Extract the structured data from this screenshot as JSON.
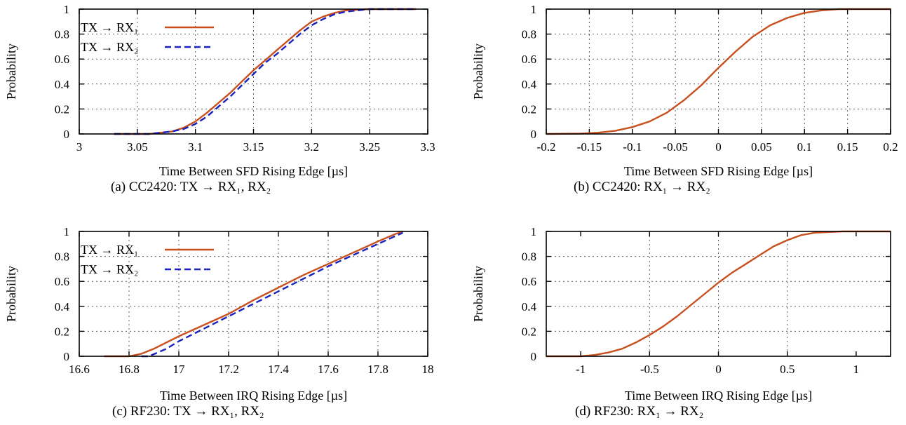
{
  "panels": [
    {
      "id": "a",
      "caption": "(a) CC2420: TX → RX₁, RX₂",
      "chart_data": {
        "type": "line",
        "xlabel": "Time Between SFD Rising Edge [µs]",
        "ylabel": "Probability",
        "xlim": [
          3.0,
          3.3
        ],
        "ylim": [
          0,
          1
        ],
        "xticks": [
          3,
          3.05,
          3.1,
          3.15,
          3.2,
          3.25,
          3.3
        ],
        "xtick_labels": [
          "3",
          "3.05",
          "3.1",
          "3.15",
          "3.2",
          "3.25",
          "3.3"
        ],
        "yticks": [
          0,
          0.2,
          0.4,
          0.6,
          0.8,
          1
        ],
        "ytick_labels": [
          "0",
          "0.2",
          "0.4",
          "0.6",
          "0.8",
          "1"
        ],
        "grid": true,
        "legend": "top-left",
        "series": [
          {
            "name": "TX → RX₁",
            "color": "#c8501e",
            "style": "solid",
            "x": [
              3.03,
              3.06,
              3.07,
              3.08,
              3.09,
              3.1,
              3.11,
              3.12,
              3.13,
              3.14,
              3.15,
              3.16,
              3.17,
              3.18,
              3.19,
              3.2,
              3.21,
              3.22,
              3.23,
              3.24,
              3.25,
              3.29
            ],
            "y": [
              0,
              0.0,
              0.01,
              0.02,
              0.05,
              0.1,
              0.17,
              0.25,
              0.33,
              0.42,
              0.51,
              0.59,
              0.67,
              0.75,
              0.83,
              0.9,
              0.94,
              0.97,
              0.99,
              0.995,
              1.0,
              1.0
            ]
          },
          {
            "name": "TX → RX₂",
            "color": "#1a22c0",
            "style": "dashed",
            "x": [
              3.03,
              3.06,
              3.07,
              3.08,
              3.09,
              3.1,
              3.11,
              3.12,
              3.13,
              3.14,
              3.15,
              3.16,
              3.17,
              3.18,
              3.19,
              3.2,
              3.21,
              3.22,
              3.23,
              3.24,
              3.25,
              3.29
            ],
            "y": [
              0,
              0.0,
              0.01,
              0.02,
              0.04,
              0.08,
              0.14,
              0.22,
              0.3,
              0.39,
              0.48,
              0.57,
              0.64,
              0.72,
              0.8,
              0.87,
              0.92,
              0.96,
              0.98,
              0.99,
              1.0,
              1.0
            ]
          }
        ]
      }
    },
    {
      "id": "b",
      "caption": "(b) CC2420: RX₁ → RX₂",
      "chart_data": {
        "type": "line",
        "xlabel": "Time Between SFD Rising Edge [µs]",
        "ylabel": "Probability",
        "xlim": [
          -0.2,
          0.2
        ],
        "ylim": [
          0,
          1
        ],
        "xticks": [
          -0.2,
          -0.15,
          -0.1,
          -0.05,
          0,
          0.05,
          0.1,
          0.15,
          0.2
        ],
        "xtick_labels": [
          "-0.2",
          "-0.15",
          "-0.1",
          "-0.05",
          "0",
          "0.05",
          "0.1",
          "0.15",
          "0.2"
        ],
        "yticks": [
          0,
          0.2,
          0.4,
          0.6,
          0.8,
          1
        ],
        "ytick_labels": [
          "0",
          "0.2",
          "0.4",
          "0.6",
          "0.8",
          "1"
        ],
        "grid": true,
        "legend": "none",
        "series": [
          {
            "color": "#c8501e",
            "style": "solid",
            "x": [
              -0.2,
              -0.16,
              -0.14,
              -0.12,
              -0.1,
              -0.08,
              -0.06,
              -0.04,
              -0.02,
              0.0,
              0.02,
              0.04,
              0.06,
              0.08,
              0.1,
              0.12,
              0.14,
              0.2
            ],
            "y": [
              0,
              0.003,
              0.01,
              0.025,
              0.055,
              0.1,
              0.17,
              0.27,
              0.39,
              0.53,
              0.66,
              0.78,
              0.87,
              0.93,
              0.97,
              0.99,
              1.0,
              1.0
            ]
          }
        ]
      }
    },
    {
      "id": "c",
      "caption": "(c) RF230: TX → RX₁, RX₂",
      "chart_data": {
        "type": "line",
        "xlabel": "Time Between IRQ Rising Edge [µs]",
        "ylabel": "Probability",
        "xlim": [
          16.6,
          18.0
        ],
        "ylim": [
          0,
          1
        ],
        "xticks": [
          16.6,
          16.8,
          17,
          17.2,
          17.4,
          17.6,
          17.8,
          18
        ],
        "xtick_labels": [
          "16.6",
          "16.8",
          "17",
          "17.2",
          "17.4",
          "17.6",
          "17.8",
          "18"
        ],
        "yticks": [
          0,
          0.2,
          0.4,
          0.6,
          0.8,
          1
        ],
        "ytick_labels": [
          "0",
          "0.2",
          "0.4",
          "0.6",
          "0.8",
          "1"
        ],
        "grid": true,
        "legend": "top-left",
        "series": [
          {
            "name": "TX → RX₁",
            "color": "#c8501e",
            "style": "solid",
            "x": [
              16.7,
              16.8,
              16.85,
              16.9,
              17.0,
              17.1,
              17.2,
              17.3,
              17.4,
              17.5,
              17.6,
              17.7,
              17.8,
              17.87,
              17.9
            ],
            "y": [
              0,
              0.0,
              0.02,
              0.06,
              0.16,
              0.25,
              0.34,
              0.45,
              0.55,
              0.65,
              0.74,
              0.83,
              0.92,
              0.98,
              1.0
            ]
          },
          {
            "name": "TX → RX₂",
            "color": "#1a22c0",
            "style": "dashed",
            "x": [
              16.85,
              16.88,
              16.95,
              17.0,
              17.1,
              17.2,
              17.3,
              17.4,
              17.5,
              17.6,
              17.7,
              17.8,
              17.9
            ],
            "y": [
              0,
              0.0,
              0.06,
              0.12,
              0.22,
              0.32,
              0.42,
              0.52,
              0.62,
              0.72,
              0.81,
              0.9,
              0.99
            ]
          }
        ]
      }
    },
    {
      "id": "d",
      "caption": "(d) RF230: RX₁ → RX₂",
      "chart_data": {
        "type": "line",
        "xlabel": "Time Between IRQ Rising Edge [µs]",
        "ylabel": "Probability",
        "xlim": [
          -1.25,
          1.25
        ],
        "ylim": [
          0,
          1
        ],
        "xticks": [
          -1,
          -0.5,
          0,
          0.5,
          1
        ],
        "xtick_labels": [
          "-1",
          "-0.5",
          "0",
          "0.5",
          "1"
        ],
        "yticks": [
          0,
          0.2,
          0.4,
          0.6,
          0.8,
          1
        ],
        "ytick_labels": [
          "0",
          "0.2",
          "0.4",
          "0.6",
          "0.8",
          "1"
        ],
        "grid": true,
        "legend": "none",
        "series": [
          {
            "color": "#c8501e",
            "style": "solid",
            "x": [
              -1.25,
              -1.0,
              -0.9,
              -0.8,
              -0.7,
              -0.6,
              -0.5,
              -0.4,
              -0.3,
              -0.2,
              -0.1,
              0.0,
              0.1,
              0.2,
              0.3,
              0.4,
              0.5,
              0.6,
              0.7,
              0.8,
              0.9,
              1.25
            ],
            "y": [
              0,
              0.0,
              0.01,
              0.03,
              0.06,
              0.11,
              0.17,
              0.24,
              0.32,
              0.41,
              0.5,
              0.59,
              0.67,
              0.74,
              0.81,
              0.88,
              0.93,
              0.97,
              0.99,
              0.995,
              1.0,
              1.0
            ]
          }
        ]
      }
    }
  ]
}
